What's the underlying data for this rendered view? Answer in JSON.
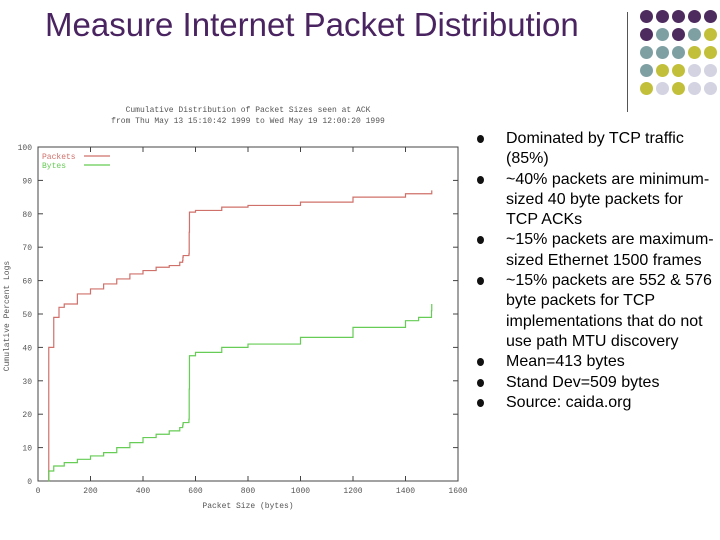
{
  "slide": {
    "title": "Measure Internet Packet Distribution",
    "colors": {
      "title": "#4a2460",
      "purple": "#4e2b5e",
      "teal": "#7fa0a3",
      "olive": "#c2c03a",
      "lavender": "#d3d3e1"
    }
  },
  "bullets": [
    "Dominated by TCP traffic (85%)",
    "~40% packets are minimum-sized 40 byte packets for TCP ACKs",
    "~15% packets are maximum-sized Ethernet 1500 frames",
    "~15% packets are 552 & 576 byte packets for TCP implementations that do not use path MTU discovery",
    "Mean=413 bytes",
    "Stand Dev=509 bytes",
    "Source:  caida.org"
  ],
  "chart_data": {
    "type": "line",
    "title": "Cumulative Distribution of Packet Sizes seen at ACK",
    "subtitle": "from Thu May 13 15:10:42 1999 to Wed May 19 12:00:20 1999",
    "xlabel": "Packet Size (bytes)",
    "ylabel": "Cumulative Percent Logs",
    "xlim": [
      0,
      1600
    ],
    "ylim": [
      0,
      100
    ],
    "xticks": [
      "0",
      "200",
      "400",
      "600",
      "800",
      "1000",
      "1200",
      "1400",
      "1600"
    ],
    "yticks": [
      "0",
      "10",
      "20",
      "30",
      "40",
      "50",
      "60",
      "70",
      "80",
      "90",
      "100"
    ],
    "legend_position": "top-left",
    "series": [
      {
        "name": "Packets",
        "color": "#d0706a",
        "x": [
          40,
          41,
          60,
          80,
          100,
          150,
          200,
          250,
          300,
          350,
          400,
          450,
          500,
          540,
          551,
          552,
          553,
          575,
          576,
          577,
          600,
          700,
          800,
          1000,
          1200,
          1400,
          1500
        ],
        "y": [
          0,
          40,
          49,
          52,
          53,
          56,
          57.5,
          59,
          60.5,
          62,
          63,
          64,
          64.5,
          65.5,
          66,
          67,
          67.5,
          68,
          74.5,
          80.5,
          81,
          82,
          82.5,
          83.5,
          85,
          86,
          87
        ]
      },
      {
        "name": "Bytes",
        "color": "#66cc55",
        "x": [
          40,
          41,
          60,
          100,
          150,
          200,
          250,
          300,
          350,
          400,
          450,
          500,
          540,
          551,
          552,
          553,
          575,
          576,
          577,
          600,
          700,
          800,
          1000,
          1200,
          1400,
          1450,
          1499,
          1500
        ],
        "y": [
          0,
          3,
          4.5,
          5.5,
          6.5,
          7.5,
          8.5,
          10,
          11.5,
          13,
          14,
          15,
          16,
          16.5,
          17,
          17.5,
          18.5,
          27.5,
          37.5,
          38.5,
          40,
          41,
          43,
          46,
          48,
          49,
          51,
          53
        ]
      }
    ]
  }
}
